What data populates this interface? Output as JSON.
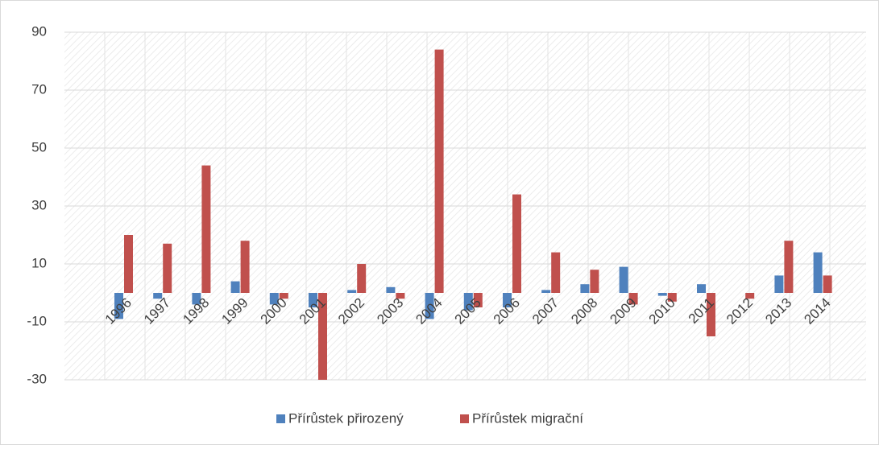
{
  "chart_data": {
    "type": "bar",
    "categories": [
      "1996",
      "1997",
      "1998",
      "1999",
      "2000",
      "2001",
      "2002",
      "2003",
      "2004",
      "2005",
      "2006",
      "2007",
      "2008",
      "2009",
      "2010",
      "2011",
      "2012",
      "2013",
      "2014"
    ],
    "series": [
      {
        "name": "Přírůstek přirozený",
        "color": "#4f81bd",
        "values": [
          -9,
          -2,
          -4,
          4,
          -4,
          -5,
          1,
          2,
          -9,
          -6,
          -5,
          1,
          3,
          9,
          -1,
          3,
          0,
          6,
          14
        ]
      },
      {
        "name": "Přírůstek migrační",
        "color": "#c0504d",
        "values": [
          20,
          17,
          44,
          18,
          -2,
          -30,
          10,
          -2,
          84,
          -5,
          34,
          14,
          8,
          -4,
          -3,
          -15,
          -2,
          18,
          6
        ]
      }
    ],
    "ylim": [
      -30,
      90
    ],
    "yticks": [
      -30,
      -10,
      10,
      30,
      50,
      70,
      90
    ],
    "grid": true,
    "legend": "bottom"
  }
}
